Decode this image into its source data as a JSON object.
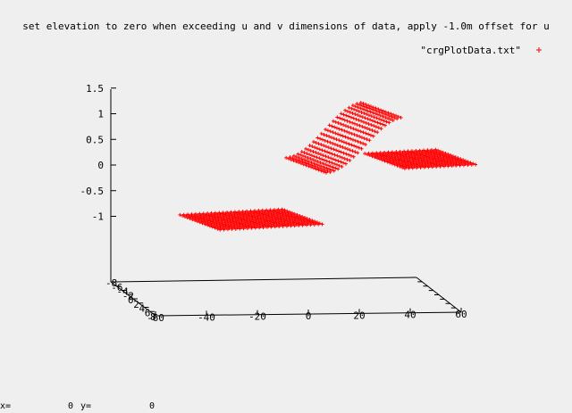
{
  "status": {
    "x_label": "x=",
    "x_value": "0",
    "y_label": "y=",
    "y_value": "0"
  },
  "colors": {
    "background": "#efefef",
    "series": "#ff0000",
    "axes": "#000000"
  },
  "chart_data": {
    "type": "scatter",
    "title": "set elevation to zero when exceeding u and v dimensions of data, apply -1.0m offset for u",
    "marker": "plus",
    "legend": {
      "label": "\"crgPlotData.txt\"",
      "position": "top-right"
    },
    "z_axis": {
      "ticks": [
        "1.5",
        "1",
        "0.5",
        "0",
        "-0.5",
        "-1"
      ],
      "values": [
        1.5,
        1,
        0.5,
        0,
        -0.5,
        -1
      ]
    },
    "x_axis": {
      "ticks": [
        "-60",
        "-40",
        "-20",
        "0",
        "20",
        "40",
        "60"
      ],
      "values": [
        -60,
        -40,
        -20,
        0,
        20,
        40,
        60
      ]
    },
    "y_axis": {
      "ticks": [
        "-8",
        "-6",
        "-4",
        "-2",
        "0",
        "2",
        "4",
        "6",
        "8"
      ],
      "values": [
        -8,
        -6,
        -4,
        -2,
        0,
        2,
        4,
        6,
        8
      ]
    },
    "series": [
      {
        "name": "\"crgPlotData.txt\"",
        "segments": [
          {
            "u_range": [
              -45,
              -2
            ],
            "v_range": [
              -8,
              8
            ],
            "elevation": -1
          },
          {
            "u_range": [
              -2,
              30
            ],
            "v_range": [
              -8,
              8
            ],
            "elevation_profile": "s-curve from 0 to 1"
          },
          {
            "u_range": [
              30,
              60
            ],
            "v_range": [
              -8,
              8
            ],
            "elevation": 0
          }
        ]
      }
    ]
  }
}
